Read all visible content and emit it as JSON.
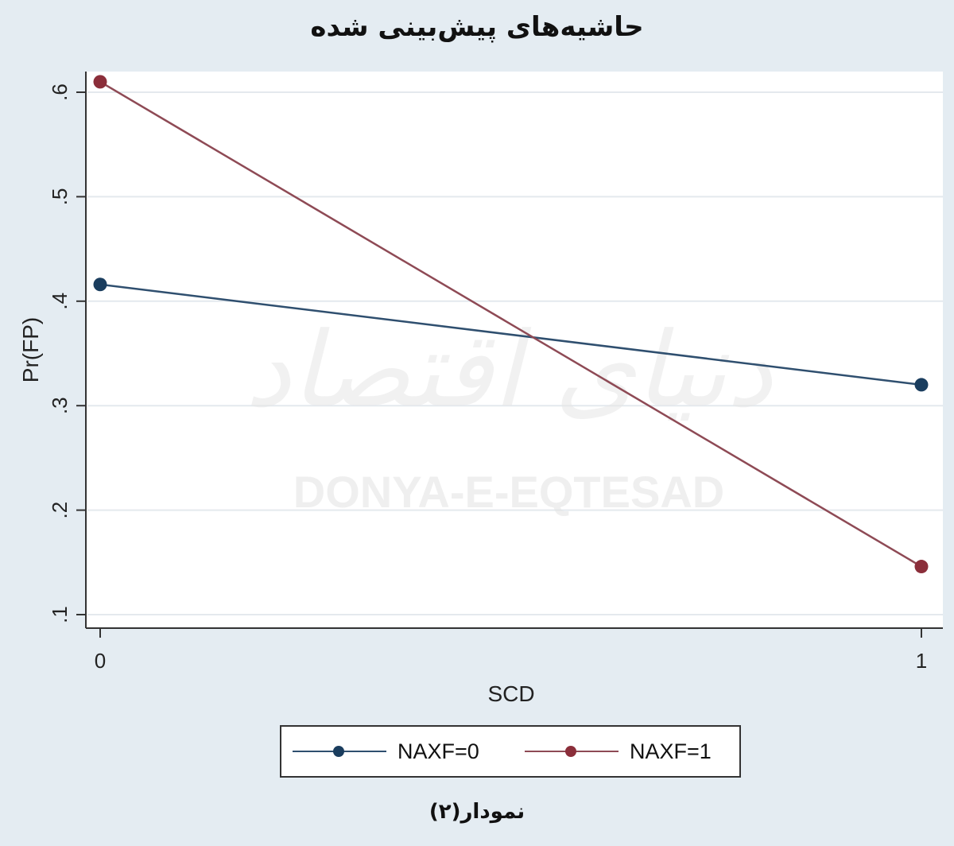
{
  "chart_data": {
    "type": "line",
    "title": "حاشیه‌های پیش‌بینی شده",
    "xlabel": "SCD",
    "ylabel": "Pr(FP)",
    "x": [
      0,
      1
    ],
    "x_ticks": [
      0,
      1
    ],
    "x_tick_labels": [
      "0",
      "1"
    ],
    "y_ticks": [
      0.1,
      0.2,
      0.3,
      0.4,
      0.5,
      0.6
    ],
    "y_tick_labels": [
      ".1",
      ".2",
      ".3",
      ".4",
      ".5",
      ".6"
    ],
    "ylim": [
      0.1,
      0.6
    ],
    "grid": true,
    "legend_position": "bottom",
    "series": [
      {
        "name": "NAXF=0",
        "color": "#2f4f6f",
        "marker_color": "#1a3d5e",
        "values": [
          0.416,
          0.32
        ]
      },
      {
        "name": "NAXF=1",
        "color": "#8e4a55",
        "marker_color": "#8b2e3a",
        "values": [
          0.61,
          0.146
        ]
      }
    ]
  },
  "watermark": {
    "latin": "DONYA-E-EQTESAD",
    "persian": "دنیای اقتصاد"
  },
  "caption": "نمودار(۲)"
}
